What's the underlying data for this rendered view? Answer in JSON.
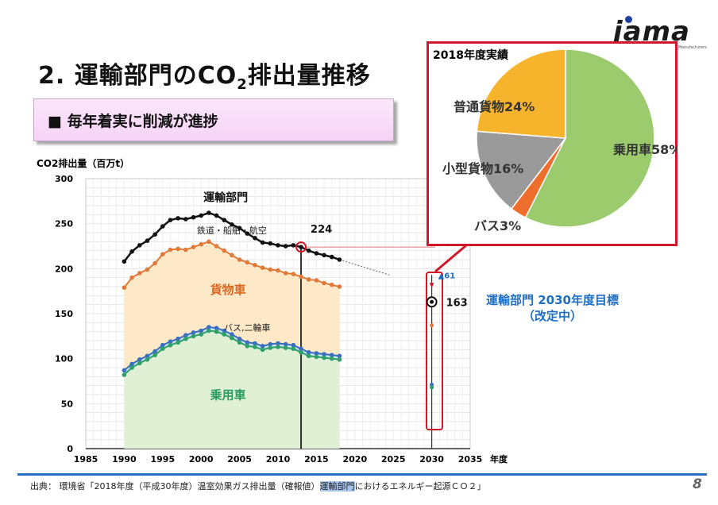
{
  "title": {
    "main": "2.  運輸部門のCO",
    "sub": "2",
    "rest": "排出量推移"
  },
  "subtitle": "■ 毎年着実に削減が進捗",
  "logo": "jama",
  "logo_tagline": "Japan Automobile Manufacturers Association",
  "page_number": "8",
  "source": {
    "prefix": "出典： 環境省「2018年度（平成30年度）温室効果ガス排出量（確報値）",
    "highlight": "運輸部門",
    "suffix": "におけるエネルギー起源ＣＯ２」"
  },
  "target": {
    "line1": "運輸部門  2030年度目標",
    "line2": "（改定中）"
  },
  "chart_data": [
    {
      "type": "line",
      "ylabel": "CO2排出量（百万t）",
      "xlabel": "年度",
      "xlim": [
        1985,
        2035
      ],
      "ylim": [
        0,
        300
      ],
      "x_ticks": [
        "1985",
        "1990",
        "1995",
        "2000",
        "2005",
        "2010",
        "2015",
        "2020",
        "2025",
        "2030",
        "2035"
      ],
      "y_ticks": [
        "0",
        "50",
        "100",
        "150",
        "200",
        "250",
        "300"
      ],
      "x": [
        1990,
        1991,
        1992,
        1993,
        1994,
        1995,
        1996,
        1997,
        1998,
        1999,
        2000,
        2001,
        2002,
        2003,
        2004,
        2005,
        2006,
        2007,
        2008,
        2009,
        2010,
        2011,
        2012,
        2013,
        2014,
        2015,
        2016,
        2017,
        2018
      ],
      "series": [
        {
          "name": "運輸部門",
          "color": "#111111",
          "values": [
            208,
            219,
            226,
            231,
            238,
            247,
            254,
            256,
            255,
            257,
            259,
            262,
            259,
            254,
            249,
            245,
            239,
            234,
            229,
            228,
            226,
            225,
            226,
            224,
            220,
            217,
            215,
            213,
            210
          ]
        },
        {
          "name": "鉄道・船舶・航空",
          "color": "#222222",
          "values": [
            180,
            191,
            196,
            200,
            207,
            217,
            222,
            223,
            222,
            225,
            228,
            231,
            226,
            221,
            216,
            211,
            208,
            205,
            202,
            200,
            199,
            196,
            195,
            192,
            189,
            188,
            185,
            183,
            181
          ]
        },
        {
          "name": "貨物車",
          "color": "#e07a3a",
          "values": [
            179,
            190,
            195,
            199,
            206,
            216,
            221,
            222,
            221,
            224,
            227,
            230,
            225,
            220,
            215,
            210,
            207,
            204,
            201,
            199,
            198,
            195,
            194,
            191,
            188,
            187,
            184,
            182,
            180
          ]
        },
        {
          "name": "バス,二輪車",
          "color": "#3a6fbf",
          "values": [
            87,
            94,
            99,
            103,
            108,
            115,
            119,
            122,
            126,
            129,
            131,
            135,
            134,
            131,
            127,
            122,
            118,
            117,
            114,
            116,
            117,
            116,
            115,
            111,
            107,
            106,
            105,
            104,
            103
          ]
        },
        {
          "name": "乗用車",
          "color": "#2ea06a",
          "values": [
            82,
            90,
            95,
            99,
            104,
            111,
            115,
            118,
            122,
            125,
            127,
            131,
            130,
            127,
            123,
            118,
            114,
            113,
            110,
            112,
            113,
            112,
            111,
            107,
            103,
            102,
            101,
            100,
            99
          ]
        }
      ],
      "annotations": [
        {
          "label": "224",
          "x": 2013,
          "y": 224
        },
        {
          "label": "163",
          "x": 2030,
          "y": 163
        },
        {
          "label": "▲61",
          "x": 2030,
          "y": 193
        }
      ],
      "target_2030": {
        "運輸部門": 163,
        "貨物車": 137,
        "バス,二輪車": 71,
        "乗用車": 68
      }
    },
    {
      "type": "pie",
      "title": "2018年度実績",
      "slices": [
        {
          "label": "乗用車58%",
          "value": 58,
          "color": "#9ccb6e"
        },
        {
          "label": "バス3%",
          "value": 3,
          "color": "#ee6f2d"
        },
        {
          "label": "小型貨物16%",
          "value": 16,
          "color": "#9a9a9a"
        },
        {
          "label": "普通貨物24%",
          "value": 24,
          "color": "#f6b42c"
        }
      ]
    }
  ]
}
